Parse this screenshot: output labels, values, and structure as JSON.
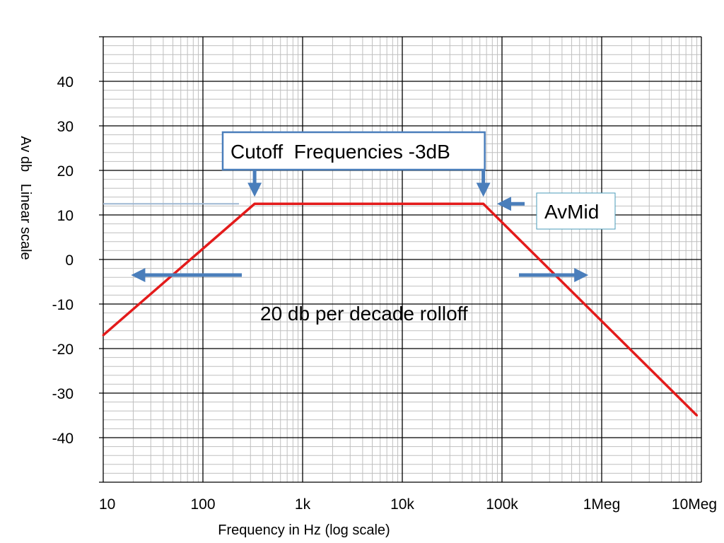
{
  "chart_data": {
    "type": "line",
    "title": "",
    "xlabel": "Frequency in Hz (log scale)",
    "ylabel": "Av db   Linear scale",
    "x_scale": "log",
    "xlim": [
      10,
      10000000
    ],
    "ylim": [
      -50,
      50
    ],
    "grid": true,
    "x_ticks": [
      {
        "value": 10,
        "label": "10"
      },
      {
        "value": 100,
        "label": "100"
      },
      {
        "value": 1000,
        "label": "1k"
      },
      {
        "value": 10000,
        "label": "10k"
      },
      {
        "value": 100000,
        "label": "100k"
      },
      {
        "value": 1000000,
        "label": "1Meg"
      },
      {
        "value": 10000000,
        "label": "10Meg"
      }
    ],
    "y_ticks": [
      {
        "value": 40,
        "label": "40"
      },
      {
        "value": 30,
        "label": "30"
      },
      {
        "value": 20,
        "label": "20"
      },
      {
        "value": 10,
        "label": "10"
      },
      {
        "value": 0,
        "label": "0"
      },
      {
        "value": -10,
        "label": "-10"
      },
      {
        "value": -20,
        "label": "-20"
      },
      {
        "value": -30,
        "label": "-30"
      },
      {
        "value": -40,
        "label": "-40"
      }
    ],
    "series": [
      {
        "color": "#e31b1b",
        "points": [
          {
            "x": 10,
            "y": -17
          },
          {
            "x": 330,
            "y": 12.5
          },
          {
            "x": 65000,
            "y": 12.5
          },
          {
            "x": 9000000,
            "y": -35
          }
        ]
      }
    ],
    "reference_line": {
      "x": [
        10,
        230
      ],
      "y": 12.5,
      "color": "#9db7d3"
    },
    "annotations": {
      "cutoff": {
        "text": "Cutoff  Frequencies -3dB",
        "arrows_at_x": [
          330,
          65000
        ],
        "arrow_tip_y": 15.5
      },
      "avmid": {
        "text": "AvMid",
        "arrow_x": 100000,
        "y": 12.5
      },
      "rolloff": {
        "text": "20 db per decade rolloff",
        "y": -3.5,
        "left_arrow_to_x": 20,
        "right_arrow_to_x": 700000
      }
    },
    "colors": {
      "curve": "#e31b1b",
      "arrow": "#4a7ebb",
      "box": "#4a7ebb",
      "grid_major": "#000000",
      "grid_minor": "#bfbfbf"
    }
  }
}
